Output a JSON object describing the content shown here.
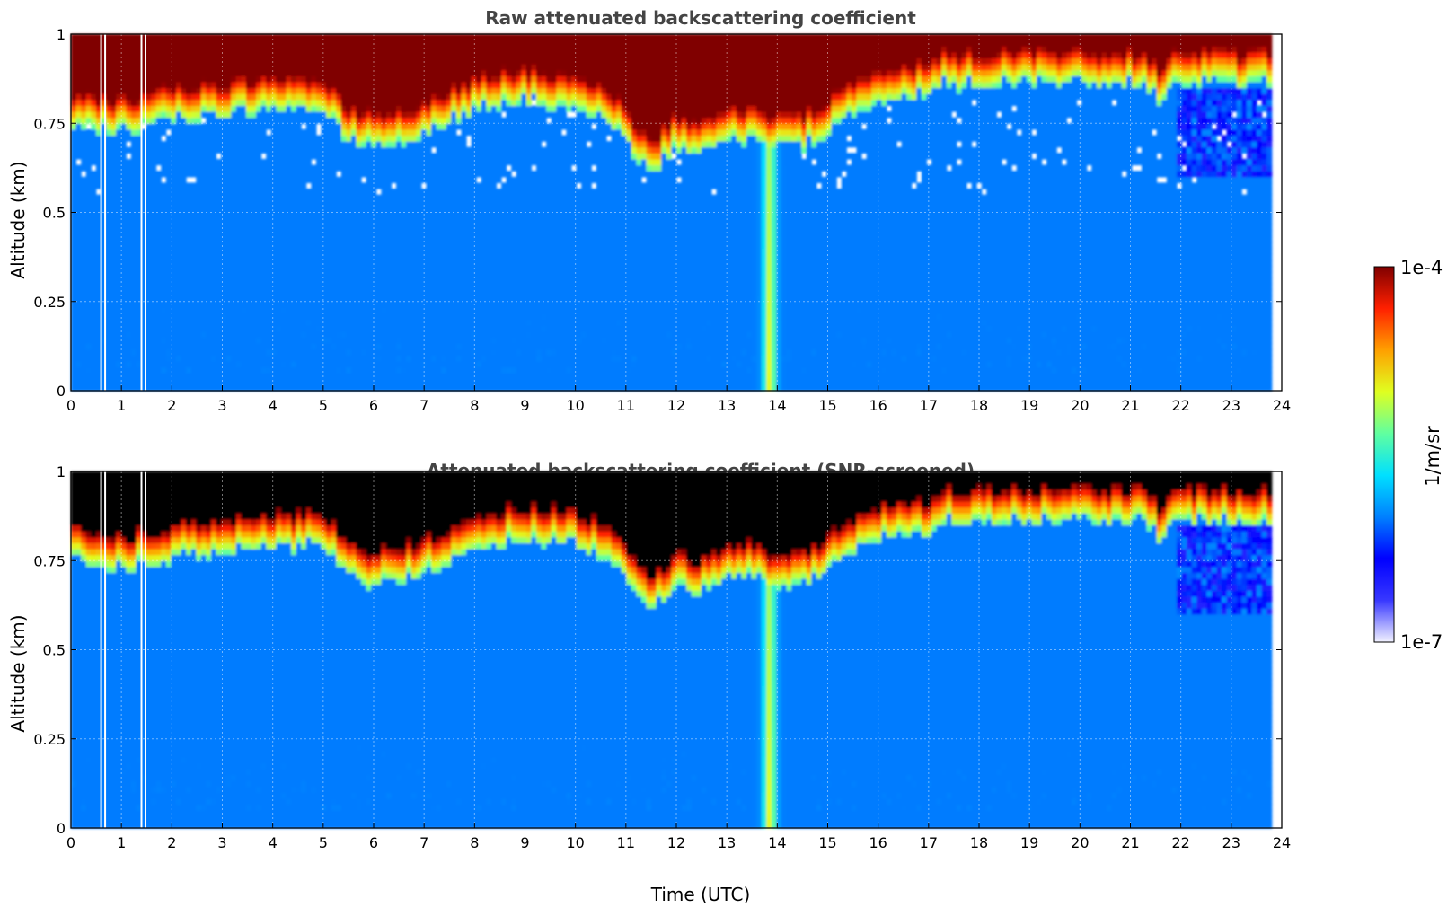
{
  "chart_data": [
    {
      "type": "heatmap",
      "title": "Raw attenuated backscattering coefficient",
      "ylabel": "Altitude (km)",
      "xlabel": "",
      "xlim": [
        0,
        24
      ],
      "ylim": [
        0,
        1
      ],
      "xticks": [
        "0",
        "1",
        "2",
        "3",
        "4",
        "5",
        "6",
        "7",
        "8",
        "9",
        "10",
        "11",
        "12",
        "13",
        "14",
        "15",
        "16",
        "17",
        "18",
        "19",
        "20",
        "21",
        "22",
        "23",
        "24"
      ],
      "yticks": [
        "0",
        "0.25",
        "0.5",
        "0.75",
        "1"
      ],
      "grid": true,
      "saturated_color": "#800000",
      "layer_base_profile": {
        "time": [
          0,
          0.5,
          1,
          2,
          3,
          4,
          5,
          5.5,
          6,
          7,
          8,
          9,
          10,
          10.8,
          11,
          11.5,
          12,
          12.5,
          13,
          13.5,
          13.8,
          14,
          14.5,
          15,
          15.5,
          16,
          17,
          17.2,
          18,
          19,
          20,
          21,
          21.3,
          21.6,
          21.8
        ],
        "altitude_km": [
          0.79,
          0.78,
          0.77,
          0.8,
          0.81,
          0.83,
          0.83,
          0.75,
          0.72,
          0.76,
          0.83,
          0.85,
          0.84,
          0.78,
          0.72,
          0.65,
          0.72,
          0.7,
          0.74,
          0.75,
          0.72,
          0.73,
          0.73,
          0.76,
          0.82,
          0.85,
          0.87,
          0.9,
          0.9,
          0.9,
          0.9,
          0.9,
          0.9,
          0.85,
          0.9
        ]
      },
      "aerosol_plume": {
        "time": 13.85,
        "signal": "1e-5"
      }
    },
    {
      "type": "heatmap",
      "title": "Attenuated backscattering coefficient (SNR-screened)",
      "ylabel": "Altitude (km)",
      "xlabel": "Time (UTC)",
      "xlim": [
        0,
        24
      ],
      "ylim": [
        0,
        1
      ],
      "xticks": [
        "0",
        "1",
        "2",
        "3",
        "4",
        "5",
        "6",
        "7",
        "8",
        "9",
        "10",
        "11",
        "12",
        "13",
        "14",
        "15",
        "16",
        "17",
        "18",
        "19",
        "20",
        "21",
        "22",
        "23",
        "24"
      ],
      "yticks": [
        "0",
        "0.25",
        "0.5",
        "0.75",
        "1"
      ],
      "grid": true,
      "saturated_color": "#000000",
      "layer_base_profile": {
        "time": [
          0,
          0.5,
          1,
          2,
          3,
          4,
          5,
          5.5,
          6,
          7,
          8,
          9,
          10,
          10.8,
          11,
          11.5,
          12,
          12.5,
          13,
          13.5,
          13.8,
          14,
          14.5,
          15,
          15.5,
          16,
          17,
          17.2,
          18,
          19,
          20,
          21,
          21.3,
          21.6,
          21.8
        ],
        "altitude_km": [
          0.79,
          0.78,
          0.77,
          0.8,
          0.81,
          0.83,
          0.83,
          0.75,
          0.72,
          0.76,
          0.83,
          0.85,
          0.84,
          0.78,
          0.72,
          0.65,
          0.72,
          0.7,
          0.74,
          0.75,
          0.72,
          0.73,
          0.73,
          0.76,
          0.82,
          0.85,
          0.87,
          0.9,
          0.9,
          0.9,
          0.9,
          0.9,
          0.9,
          0.85,
          0.9
        ]
      },
      "aerosol_plume": {
        "time": 13.85,
        "signal": "1e-5"
      }
    }
  ],
  "colorbar": {
    "max_label": "1e-4",
    "min_label": "1e-7",
    "unit": "1/m/sr",
    "scale": "log",
    "colormap": "jet",
    "stops": [
      "#f2f2ff",
      "#3838ff",
      "#0000ff",
      "#0080ff",
      "#00e0ff",
      "#60ffa0",
      "#e0ff20",
      "#ffa000",
      "#ff2000",
      "#800000"
    ]
  }
}
